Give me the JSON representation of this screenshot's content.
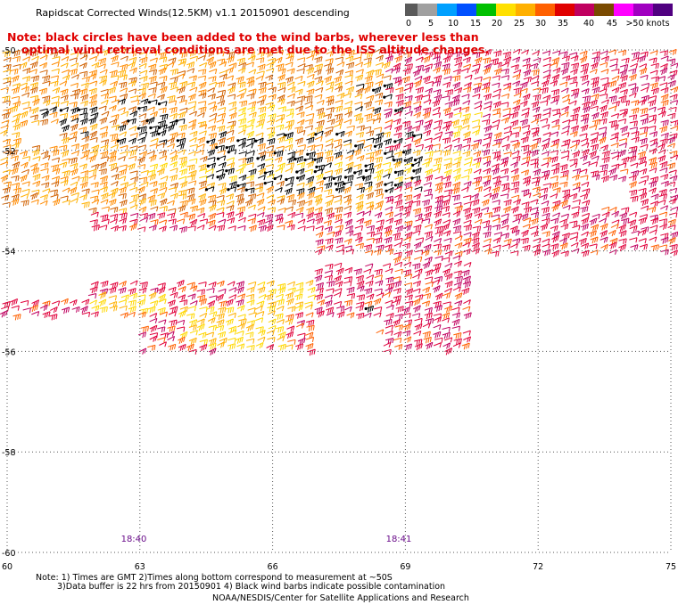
{
  "title": "Rapidscat Corrected Winds(12.5KM) v1.1 20150901 descending",
  "note_line1": "Note: black circles have been added to the wind barbs, wherever less than",
  "note_line2": "optimal wind retrieval conditions are met due to the ISS altitude changes.",
  "scale": {
    "labels": [
      "0",
      "5",
      "10",
      "15",
      "20",
      "25",
      "30",
      "35",
      "40",
      "45",
      ">50 knots"
    ],
    "colors": [
      "#5a5a5a",
      "#a0a0a0",
      "#00a0ff",
      "#0050ff",
      "#00c000",
      "#ffe000",
      "#ffb000",
      "#ff6000",
      "#e00000",
      "#c00060",
      "#7a4a00",
      "#ff00ff",
      "#a000c0",
      "#500080"
    ]
  },
  "axes": {
    "lat_labels": [
      "-50",
      "-52",
      "-54",
      "-56",
      "-58",
      "-60"
    ],
    "lon_labels": [
      "60",
      "63",
      "66",
      "69",
      "72",
      "75"
    ]
  },
  "times": [
    "18:40",
    "18:41"
  ],
  "footer": {
    "line1": "Note: 1) Times are GMT 2)Times along bottom correspond to measurement at ~50S",
    "line2": "3)Data buffer is 22 hrs from 20150901 4) Black wind barbs indicate possible contamination",
    "line3": "NOAA/NESDIS/Center for Satellite Applications and Research"
  }
}
